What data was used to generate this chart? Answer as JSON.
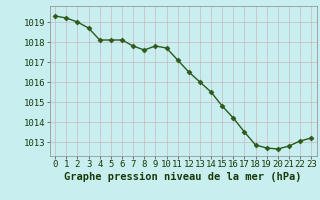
{
  "x": [
    0,
    1,
    2,
    3,
    4,
    5,
    6,
    7,
    8,
    9,
    10,
    11,
    12,
    13,
    14,
    15,
    16,
    17,
    18,
    19,
    20,
    21,
    22,
    23
  ],
  "y": [
    1019.3,
    1019.2,
    1019.0,
    1018.7,
    1018.1,
    1018.1,
    1018.1,
    1017.8,
    1017.6,
    1017.8,
    1017.7,
    1017.1,
    1016.5,
    1016.0,
    1015.5,
    1014.8,
    1014.2,
    1013.5,
    1012.85,
    1012.7,
    1012.65,
    1012.8,
    1013.05,
    1013.2
  ],
  "line_color": "#2d5a1b",
  "marker": "D",
  "marker_size": 2.5,
  "bg_color": "#c8eef0",
  "grid_color": "#c8d8d0",
  "xlabel": "Graphe pression niveau de la mer (hPa)",
  "xlabel_fontsize": 7.5,
  "tick_fontsize": 6.5,
  "ylim": [
    1012.3,
    1019.8
  ],
  "yticks": [
    1013,
    1014,
    1015,
    1016,
    1017,
    1018,
    1019
  ],
  "xticks": [
    0,
    1,
    2,
    3,
    4,
    5,
    6,
    7,
    8,
    9,
    10,
    11,
    12,
    13,
    14,
    15,
    16,
    17,
    18,
    19,
    20,
    21,
    22,
    23
  ]
}
